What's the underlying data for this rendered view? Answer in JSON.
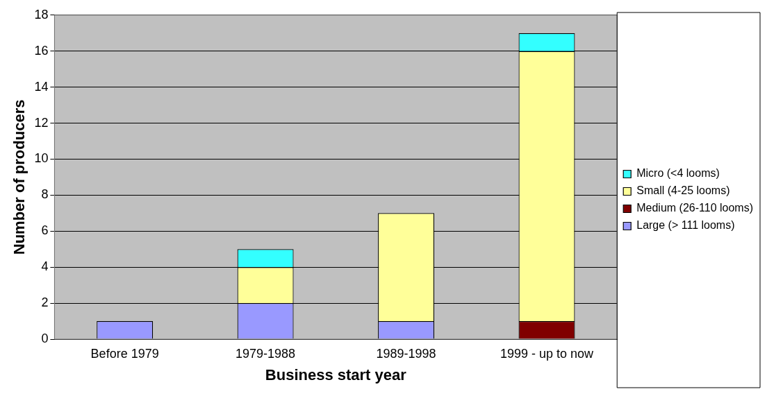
{
  "chart_data": {
    "type": "bar",
    "stacked": true,
    "xlabel": "Business start year",
    "ylabel": "Number of producers",
    "categories": [
      "Before 1979",
      "1979-1988",
      "1989-1998",
      "1999 - up to now"
    ],
    "series": [
      {
        "name": "Large (> 111 looms)",
        "color": "#9999ff",
        "values": [
          1,
          2,
          1,
          0
        ]
      },
      {
        "name": "Medium (26-110 looms)",
        "color": "#800000",
        "values": [
          0,
          0,
          0,
          1
        ]
      },
      {
        "name": "Small (4-25 looms)",
        "color": "#ffff99",
        "values": [
          0,
          2,
          6,
          15
        ]
      },
      {
        "name": "Micro (<4 looms)",
        "color": "#33ffff",
        "values": [
          0,
          1,
          0,
          1
        ]
      }
    ],
    "ylim": [
      0,
      18
    ],
    "yticks": [
      0,
      2,
      4,
      6,
      8,
      10,
      12,
      14,
      16,
      18
    ],
    "grid": "y",
    "legend": "right"
  }
}
